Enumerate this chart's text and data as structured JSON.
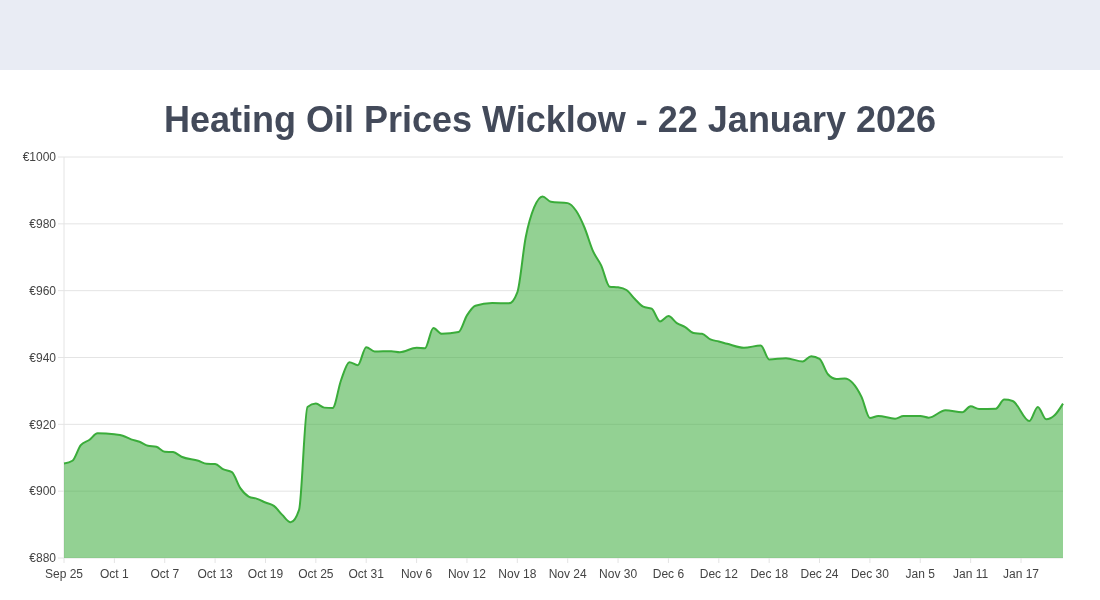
{
  "chart_data": {
    "type": "area",
    "title": "Heating Oil Prices Wicklow - 22 January 2026",
    "x": [
      "2025-09-25",
      "2025-09-26",
      "2025-09-27",
      "2025-09-28",
      "2025-09-29",
      "2025-10-01",
      "2025-10-02",
      "2025-10-03",
      "2025-10-04",
      "2025-10-05",
      "2025-10-06",
      "2025-10-07",
      "2025-10-08",
      "2025-10-09",
      "2025-10-11",
      "2025-10-12",
      "2025-10-13",
      "2025-10-14",
      "2025-10-15",
      "2025-10-16",
      "2025-10-17",
      "2025-10-18",
      "2025-10-19",
      "2025-10-20",
      "2025-10-21",
      "2025-10-22",
      "2025-10-23",
      "2025-10-24",
      "2025-10-25",
      "2025-10-26",
      "2025-10-27",
      "2025-10-28",
      "2025-10-29",
      "2025-10-30",
      "2025-10-31",
      "2025-11-01",
      "2025-11-03",
      "2025-11-04",
      "2025-11-06",
      "2025-11-07",
      "2025-11-08",
      "2025-11-09",
      "2025-11-11",
      "2025-11-12",
      "2025-11-13",
      "2025-11-15",
      "2025-11-17",
      "2025-11-18",
      "2025-11-19",
      "2025-11-20",
      "2025-11-21",
      "2025-11-22",
      "2025-11-24",
      "2025-11-25",
      "2025-11-26",
      "2025-11-27",
      "2025-11-28",
      "2025-11-29",
      "2025-11-30",
      "2025-12-01",
      "2025-12-02",
      "2025-12-03",
      "2025-12-04",
      "2025-12-05",
      "2025-12-06",
      "2025-12-07",
      "2025-12-08",
      "2025-12-09",
      "2025-12-10",
      "2025-12-11",
      "2025-12-12",
      "2025-12-13",
      "2025-12-15",
      "2025-12-17",
      "2025-12-18",
      "2025-12-20",
      "2025-12-22",
      "2025-12-23",
      "2025-12-24",
      "2025-12-25",
      "2025-12-26",
      "2025-12-27",
      "2025-12-29",
      "2025-12-30",
      "2025-12-31",
      "2026-01-02",
      "2026-01-03",
      "2026-01-05",
      "2026-01-06",
      "2026-01-08",
      "2026-01-10",
      "2026-01-11",
      "2026-01-12",
      "2026-01-14",
      "2026-01-15",
      "2026-01-16",
      "2026-01-18",
      "2026-01-19",
      "2026-01-20",
      "2026-01-21",
      "2026-01-22"
    ],
    "series": [
      {
        "color": "#3aac3a",
        "values": [
          908.3,
          909.1,
          913.8,
          915.3,
          917.3,
          917,
          916.6,
          915.5,
          914.8,
          913.6,
          913.3,
          911.8,
          911.7,
          910.3,
          909.1,
          908.2,
          908.1,
          906.5,
          905.7,
          900.9,
          898.4,
          897.7,
          896.6,
          895.6,
          892.9,
          890.7,
          894.4,
          925.2,
          926.2,
          925,
          924.9,
          933.2,
          938.6,
          937.7,
          943.1,
          941.8,
          941.9,
          941.6,
          942.9,
          942.8,
          948.8,
          947.1,
          947.6,
          952.6,
          955.5,
          956.3,
          956.2,
          959.5,
          976,
          984.9,
          988.2,
          986.6,
          986.2,
          983.9,
          978.9,
          971.9,
          967.5,
          961.2,
          961,
          960.2,
          957.5,
          955.2,
          954.6,
          950.8,
          952.4,
          950.3,
          949.1,
          947.3,
          947.1,
          945.4,
          944.8,
          944.1,
          942.9,
          943.6,
          939.4,
          939.8,
          938.8,
          940.4,
          939.6,
          935,
          933.6,
          933.7,
          928.2,
          921.9,
          922.5,
          921.7,
          922.5,
          922.5,
          922,
          924.2,
          923.6,
          925.4,
          924.6,
          924.7,
          927.4,
          927,
          921,
          925.2,
          921.5,
          922.7,
          926.2
        ]
      }
    ],
    "xlim": [
      "2025-09-25",
      "2026-01-22"
    ],
    "xticks": [
      {
        "value": "2025-09-25",
        "label": "Sep 25"
      },
      {
        "value": "2025-10-01",
        "label": "Oct 1"
      },
      {
        "value": "2025-10-07",
        "label": "Oct 7"
      },
      {
        "value": "2025-10-13",
        "label": "Oct 13"
      },
      {
        "value": "2025-10-19",
        "label": "Oct 19"
      },
      {
        "value": "2025-10-25",
        "label": "Oct 25"
      },
      {
        "value": "2025-10-31",
        "label": "Oct 31"
      },
      {
        "value": "2025-11-06",
        "label": "Nov 6"
      },
      {
        "value": "2025-11-12",
        "label": "Nov 12"
      },
      {
        "value": "2025-11-18",
        "label": "Nov 18"
      },
      {
        "value": "2025-11-24",
        "label": "Nov 24"
      },
      {
        "value": "2025-11-30",
        "label": "Nov 30"
      },
      {
        "value": "2025-12-06",
        "label": "Dec 6"
      },
      {
        "value": "2025-12-12",
        "label": "Dec 12"
      },
      {
        "value": "2025-12-18",
        "label": "Dec 18"
      },
      {
        "value": "2025-12-24",
        "label": "Dec 24"
      },
      {
        "value": "2025-12-30",
        "label": "Dec 30"
      },
      {
        "value": "2026-01-05",
        "label": "Jan 5"
      },
      {
        "value": "2026-01-11",
        "label": "Jan 11"
      },
      {
        "value": "2026-01-17",
        "label": "Jan 17"
      }
    ],
    "ylim": [
      880,
      1000
    ],
    "yticks": [
      {
        "value": 880,
        "label": "€880"
      },
      {
        "value": 900,
        "label": "€900"
      },
      {
        "value": 920,
        "label": "€920"
      },
      {
        "value": 940,
        "label": "€940"
      },
      {
        "value": 960,
        "label": "€960"
      },
      {
        "value": 980,
        "label": "€980"
      },
      {
        "value": 1000,
        "label": "€1000"
      }
    ],
    "grid": "y",
    "marker": "none",
    "line_style": "solid"
  }
}
